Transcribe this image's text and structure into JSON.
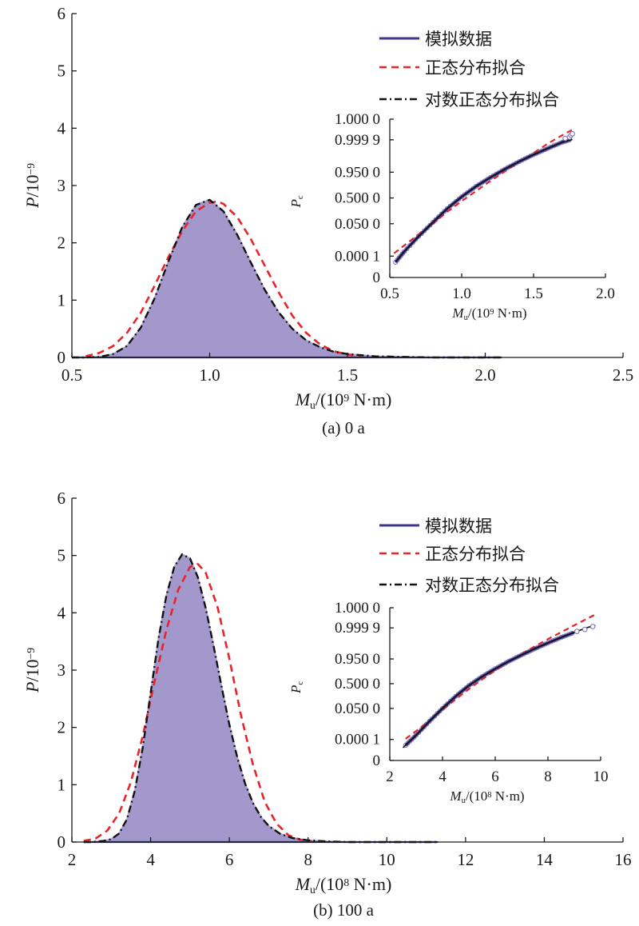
{
  "chart_data": [
    {
      "type": "area",
      "caption": "(a) 0 a",
      "xlabel": {
        "main": "M",
        "sub": "u",
        "rest": "/(10",
        "sup": "9",
        "unit": " N·m)"
      },
      "ylabel": {
        "main": "P",
        "rest": "/10",
        "sup": "−9"
      },
      "xlim": [
        0.5,
        2.5
      ],
      "ylim": [
        0,
        6
      ],
      "xticks": [
        0.5,
        1.0,
        1.5,
        2.0,
        2.5
      ],
      "xtick_labels": [
        "0.5",
        "1.0",
        "1.5",
        "2.0",
        "2.5"
      ],
      "yticks": [
        0,
        1,
        2,
        3,
        4,
        5,
        6
      ],
      "ytick_labels": [
        "0",
        "1",
        "2",
        "3",
        "4",
        "5",
        "6"
      ],
      "legend": {
        "placement": "top-right",
        "entries": [
          {
            "label": "模拟数据",
            "style": "solid",
            "color": "#3d3590"
          },
          {
            "label": "正态分布拟合",
            "style": "dashed",
            "color": "#e8232a"
          },
          {
            "label": "对数正态分布拟合",
            "style": "dashdot",
            "color": "#111111"
          }
        ]
      },
      "colors": {
        "fill": "#a398cc",
        "data": "#3d3590",
        "normal": "#e8232a",
        "lognormal": "#111111"
      },
      "histogram": {
        "x": [
          0.5,
          0.55,
          0.6,
          0.65,
          0.7,
          0.75,
          0.8,
          0.85,
          0.9,
          0.95,
          1.0,
          1.05,
          1.1,
          1.15,
          1.2,
          1.25,
          1.3,
          1.35,
          1.4,
          1.45,
          1.5,
          1.6,
          1.7,
          1.8,
          1.9,
          2.0,
          2.06
        ],
        "y": [
          0.0,
          0.0,
          0.01,
          0.06,
          0.2,
          0.52,
          1.03,
          1.67,
          2.27,
          2.66,
          2.75,
          2.55,
          2.14,
          1.65,
          1.18,
          0.79,
          0.5,
          0.3,
          0.18,
          0.1,
          0.06,
          0.02,
          0.01,
          0.0,
          0.0,
          0.0,
          0.0
        ]
      },
      "normal_fit": {
        "x": [
          0.55,
          0.6,
          0.65,
          0.7,
          0.75,
          0.8,
          0.85,
          0.9,
          0.95,
          1.0,
          1.03,
          1.05,
          1.1,
          1.15,
          1.2,
          1.25,
          1.3,
          1.35,
          1.4,
          1.45,
          1.5,
          1.55
        ],
        "y": [
          0.02,
          0.08,
          0.2,
          0.43,
          0.78,
          1.25,
          1.75,
          2.2,
          2.55,
          2.7,
          2.72,
          2.68,
          2.45,
          2.06,
          1.6,
          1.14,
          0.73,
          0.43,
          0.23,
          0.11,
          0.05,
          0.02
        ]
      },
      "lognormal_fit": {
        "x": [
          0.5,
          0.55,
          0.6,
          0.65,
          0.7,
          0.75,
          0.8,
          0.85,
          0.9,
          0.95,
          1.0,
          1.05,
          1.1,
          1.15,
          1.2,
          1.25,
          1.3,
          1.35,
          1.4,
          1.45,
          1.5,
          1.6,
          1.7,
          1.8,
          1.9,
          2.0,
          2.06
        ],
        "y": [
          0.0,
          0.0,
          0.01,
          0.06,
          0.2,
          0.52,
          1.03,
          1.67,
          2.27,
          2.66,
          2.75,
          2.55,
          2.14,
          1.65,
          1.18,
          0.79,
          0.5,
          0.3,
          0.18,
          0.1,
          0.06,
          0.02,
          0.01,
          0.0,
          0.0,
          0.0,
          0.0
        ]
      },
      "inset": {
        "type": "line",
        "xlabel": {
          "main": "M",
          "sub": "u",
          "rest": "/(10",
          "sup": "9",
          "unit": " N·m)"
        },
        "ylabel": {
          "main": "P",
          "sub": "c"
        },
        "xlim": [
          0.5,
          2.0
        ],
        "xticks": [
          0.5,
          1.0,
          1.5,
          2.0
        ],
        "xtick_labels": [
          "0.5",
          "1.0",
          "1.5",
          "2.0"
        ],
        "yticks": [
          0,
          0.0001,
          0.05,
          0.5,
          0.95,
          0.9999,
          1.0
        ],
        "ytick_labels": [
          "0",
          "0.000 1",
          "0.050 0",
          "0.500 0",
          "0.950 0",
          "0.999 9",
          "1.000 0"
        ],
        "data": {
          "x": [
            0.54,
            0.6,
            0.7,
            0.8,
            0.9,
            1.0,
            1.1,
            1.2,
            1.3,
            1.4,
            1.5,
            1.6,
            1.7,
            1.76
          ],
          "y": [
            2e-05,
            0.0003,
            0.007,
            0.06,
            0.25,
            0.53,
            0.77,
            0.905,
            0.967,
            0.99,
            0.9972,
            0.99925,
            0.99982,
            0.99991
          ]
        },
        "normal": {
          "x": [
            0.53,
            0.6,
            0.7,
            0.8,
            0.9,
            1.0,
            1.1,
            1.2,
            1.3,
            1.4,
            1.5,
            1.6,
            1.7,
            1.78
          ],
          "y": [
            0.0002,
            0.0012,
            0.01,
            0.05,
            0.19,
            0.42,
            0.67,
            0.86,
            0.955,
            0.989,
            0.998,
            0.99975,
            0.99997,
            0.999995
          ]
        },
        "lognormal": {
          "x": [
            0.54,
            0.6,
            0.7,
            0.8,
            0.9,
            1.0,
            1.1,
            1.2,
            1.3,
            1.4,
            1.5,
            1.6,
            1.7,
            1.77
          ],
          "y": [
            2e-05,
            0.0003,
            0.007,
            0.06,
            0.25,
            0.53,
            0.77,
            0.905,
            0.967,
            0.99,
            0.9972,
            0.99925,
            0.99982,
            0.99991
          ]
        },
        "outliers": {
          "x": [
            1.72,
            1.75,
            1.76,
            1.77
          ],
          "y": [
            0.99993,
            0.99995,
            0.99997,
            0.99998
          ]
        }
      }
    },
    {
      "type": "area",
      "caption": "(b) 100 a",
      "xlabel": {
        "main": "M",
        "sub": "u",
        "rest": "/(10",
        "sup": "8",
        "unit": " N·m)"
      },
      "ylabel": {
        "main": "P",
        "rest": "/10",
        "sup": "−9"
      },
      "xlim": [
        2,
        16
      ],
      "ylim": [
        0,
        6
      ],
      "xticks": [
        2,
        4,
        6,
        8,
        10,
        12,
        14,
        16
      ],
      "xtick_labels": [
        "2",
        "4",
        "6",
        "8",
        "10",
        "12",
        "14",
        "16"
      ],
      "yticks": [
        0,
        1,
        2,
        3,
        4,
        5,
        6
      ],
      "ytick_labels": [
        "0",
        "1",
        "2",
        "3",
        "4",
        "5",
        "6"
      ],
      "legend": {
        "placement": "top-right",
        "entries": [
          {
            "label": "模拟数据",
            "style": "solid",
            "color": "#3d3590"
          },
          {
            "label": "正态分布拟合",
            "style": "dashed",
            "color": "#e8232a"
          },
          {
            "label": "对数正态分布拟合",
            "style": "dashdot",
            "color": "#111111"
          }
        ]
      },
      "colors": {
        "fill": "#a398cc",
        "data": "#3d3590",
        "normal": "#e8232a",
        "lognormal": "#111111"
      },
      "histogram": {
        "x": [
          2.3,
          2.5,
          2.8,
          3.0,
          3.2,
          3.4,
          3.6,
          3.8,
          4.0,
          4.2,
          4.4,
          4.6,
          4.8,
          5.0,
          5.2,
          5.4,
          5.6,
          5.8,
          6.0,
          6.2,
          6.4,
          6.6,
          6.8,
          7.0,
          7.3,
          7.6,
          8.0,
          8.5,
          9.0,
          10.0,
          11.3
        ],
        "y": [
          0.0,
          0.0,
          0.02,
          0.05,
          0.15,
          0.4,
          0.9,
          1.65,
          2.6,
          3.55,
          4.3,
          4.8,
          5.02,
          4.95,
          4.62,
          4.08,
          3.42,
          2.72,
          2.05,
          1.48,
          1.02,
          0.68,
          0.44,
          0.28,
          0.14,
          0.07,
          0.03,
          0.01,
          0.0,
          0.0,
          0.0
        ]
      },
      "normal_fit": {
        "x": [
          2.3,
          2.6,
          2.9,
          3.2,
          3.5,
          3.8,
          4.1,
          4.4,
          4.7,
          5.0,
          5.2,
          5.4,
          5.7,
          6.0,
          6.3,
          6.6,
          6.9,
          7.2,
          7.5,
          7.8,
          8.1
        ],
        "y": [
          0.02,
          0.06,
          0.2,
          0.5,
          1.05,
          1.85,
          2.8,
          3.7,
          4.4,
          4.8,
          4.85,
          4.7,
          4.1,
          3.2,
          2.2,
          1.35,
          0.7,
          0.32,
          0.12,
          0.04,
          0.01
        ]
      },
      "lognormal_fit": {
        "x": [
          2.3,
          2.5,
          2.8,
          3.0,
          3.2,
          3.4,
          3.6,
          3.8,
          4.0,
          4.2,
          4.4,
          4.6,
          4.8,
          5.0,
          5.2,
          5.4,
          5.6,
          5.8,
          6.0,
          6.2,
          6.4,
          6.6,
          6.8,
          7.0,
          7.3,
          7.6,
          8.0,
          8.5,
          9.0,
          10.0,
          11.3
        ],
        "y": [
          0.0,
          0.0,
          0.02,
          0.05,
          0.15,
          0.4,
          0.9,
          1.65,
          2.6,
          3.55,
          4.3,
          4.8,
          5.02,
          4.95,
          4.62,
          4.08,
          3.42,
          2.72,
          2.05,
          1.48,
          1.02,
          0.68,
          0.44,
          0.28,
          0.14,
          0.07,
          0.03,
          0.01,
          0.0,
          0.0,
          0.0
        ]
      },
      "inset": {
        "type": "line",
        "xlabel": {
          "main": "M",
          "sub": "u",
          "rest": "/(10",
          "sup": "8",
          "unit": " N·m)"
        },
        "ylabel": {
          "main": "P",
          "sub": "c"
        },
        "xlim": [
          2,
          10
        ],
        "xticks": [
          2,
          4,
          6,
          8,
          10
        ],
        "xtick_labels": [
          "2",
          "4",
          "6",
          "8",
          "10"
        ],
        "yticks": [
          0,
          0.0001,
          0.05,
          0.5,
          0.95,
          0.9999,
          1.0
        ],
        "ytick_labels": [
          "0",
          "0.000 1",
          "0.050 0",
          "0.500 0",
          "0.950 0",
          "0.999 9",
          "1.000 0"
        ],
        "data": {
          "x": [
            2.6,
            3.0,
            3.5,
            4.0,
            4.5,
            5.0,
            5.5,
            6.0,
            6.5,
            7.0,
            7.5,
            8.0,
            8.5,
            9.0
          ],
          "y": [
            2e-05,
            0.0003,
            0.006,
            0.05,
            0.2,
            0.45,
            0.68,
            0.84,
            0.93,
            0.972,
            0.99,
            0.9967,
            0.99897,
            0.99969
          ]
        },
        "normal": {
          "x": [
            2.6,
            3.0,
            3.5,
            4.0,
            4.5,
            5.0,
            5.5,
            6.0,
            6.5,
            7.0,
            7.5,
            8.0,
            8.5,
            9.0,
            9.5,
            9.8
          ],
          "y": [
            0.00012,
            0.0008,
            0.007,
            0.04,
            0.15,
            0.36,
            0.61,
            0.81,
            0.925,
            0.976,
            0.9935,
            0.9985,
            0.9997,
            0.99995,
            0.999993,
            0.999998
          ]
        },
        "lognormal": {
          "x": [
            2.5,
            3.0,
            3.5,
            4.0,
            4.5,
            5.0,
            5.5,
            6.0,
            6.5,
            7.0,
            7.5,
            8.0,
            8.5,
            9.0,
            9.5,
            9.8
          ],
          "y": [
            1e-05,
            0.0003,
            0.006,
            0.05,
            0.2,
            0.45,
            0.68,
            0.84,
            0.93,
            0.972,
            0.99,
            0.9967,
            0.99897,
            0.99969,
            0.99991,
            0.99995
          ]
        },
        "outliers": {
          "x": [
            9.1,
            9.4,
            9.7
          ],
          "y": [
            0.99975,
            0.99985,
            0.99993
          ]
        }
      }
    }
  ]
}
